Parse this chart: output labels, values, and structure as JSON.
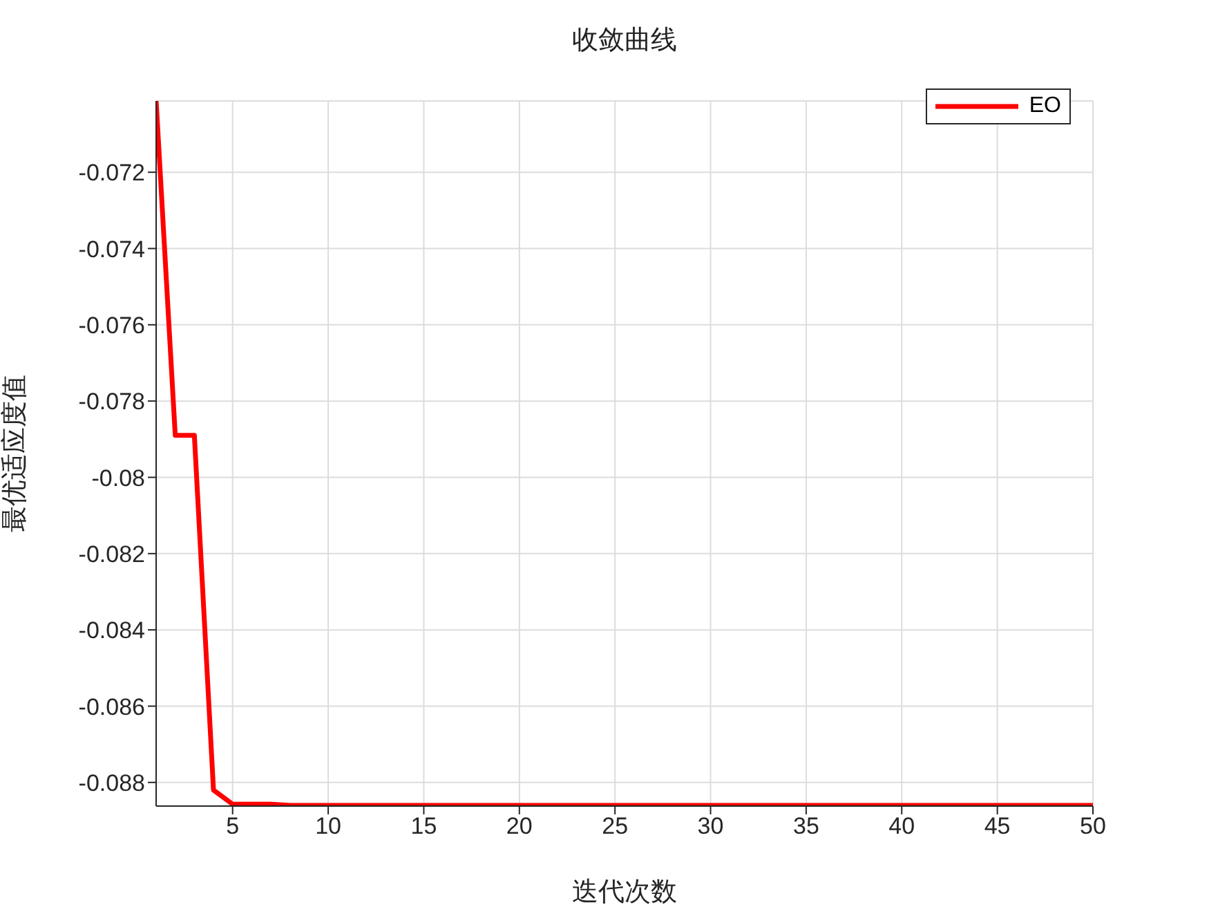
{
  "chart_data": {
    "type": "line",
    "title": "收敛曲线",
    "xlabel": "迭代次数",
    "ylabel": "最优适应度值",
    "x": [
      1,
      2,
      3,
      4,
      5,
      6,
      7,
      8,
      9,
      10,
      11,
      12,
      13,
      14,
      15,
      16,
      17,
      18,
      19,
      20,
      21,
      22,
      23,
      24,
      25,
      26,
      27,
      28,
      29,
      30,
      31,
      32,
      33,
      34,
      35,
      36,
      37,
      38,
      39,
      40,
      41,
      42,
      43,
      44,
      45,
      46,
      47,
      48,
      49,
      50
    ],
    "series": [
      {
        "name": "EO",
        "color": "#ff0000",
        "values": [
          -0.07013,
          -0.0789,
          -0.0789,
          -0.0882,
          -0.08857,
          -0.08857,
          -0.08857,
          -0.0886,
          -0.0886,
          -0.0886,
          -0.0886,
          -0.0886,
          -0.0886,
          -0.0886,
          -0.0886,
          -0.0886,
          -0.0886,
          -0.0886,
          -0.0886,
          -0.0886,
          -0.0886,
          -0.0886,
          -0.0886,
          -0.0886,
          -0.0886,
          -0.0886,
          -0.0886,
          -0.0886,
          -0.0886,
          -0.0886,
          -0.0886,
          -0.0886,
          -0.0886,
          -0.0886,
          -0.0886,
          -0.0886,
          -0.0886,
          -0.0886,
          -0.0886,
          -0.0886,
          -0.0886,
          -0.0886,
          -0.0886,
          -0.0886,
          -0.0886,
          -0.0886,
          -0.0886,
          -0.0886,
          -0.0886,
          -0.0886
        ]
      }
    ],
    "xlim": [
      1,
      50
    ],
    "xticks": [
      5,
      10,
      15,
      20,
      25,
      30,
      35,
      40,
      45,
      50
    ],
    "ylim": [
      -0.08862,
      -0.07013
    ],
    "yticks": [
      -0.088,
      -0.086,
      -0.084,
      -0.082,
      -0.08,
      -0.078,
      -0.076,
      -0.074,
      -0.072
    ],
    "grid": true,
    "legend": "top right",
    "marker": "none",
    "line_style": "solid"
  }
}
